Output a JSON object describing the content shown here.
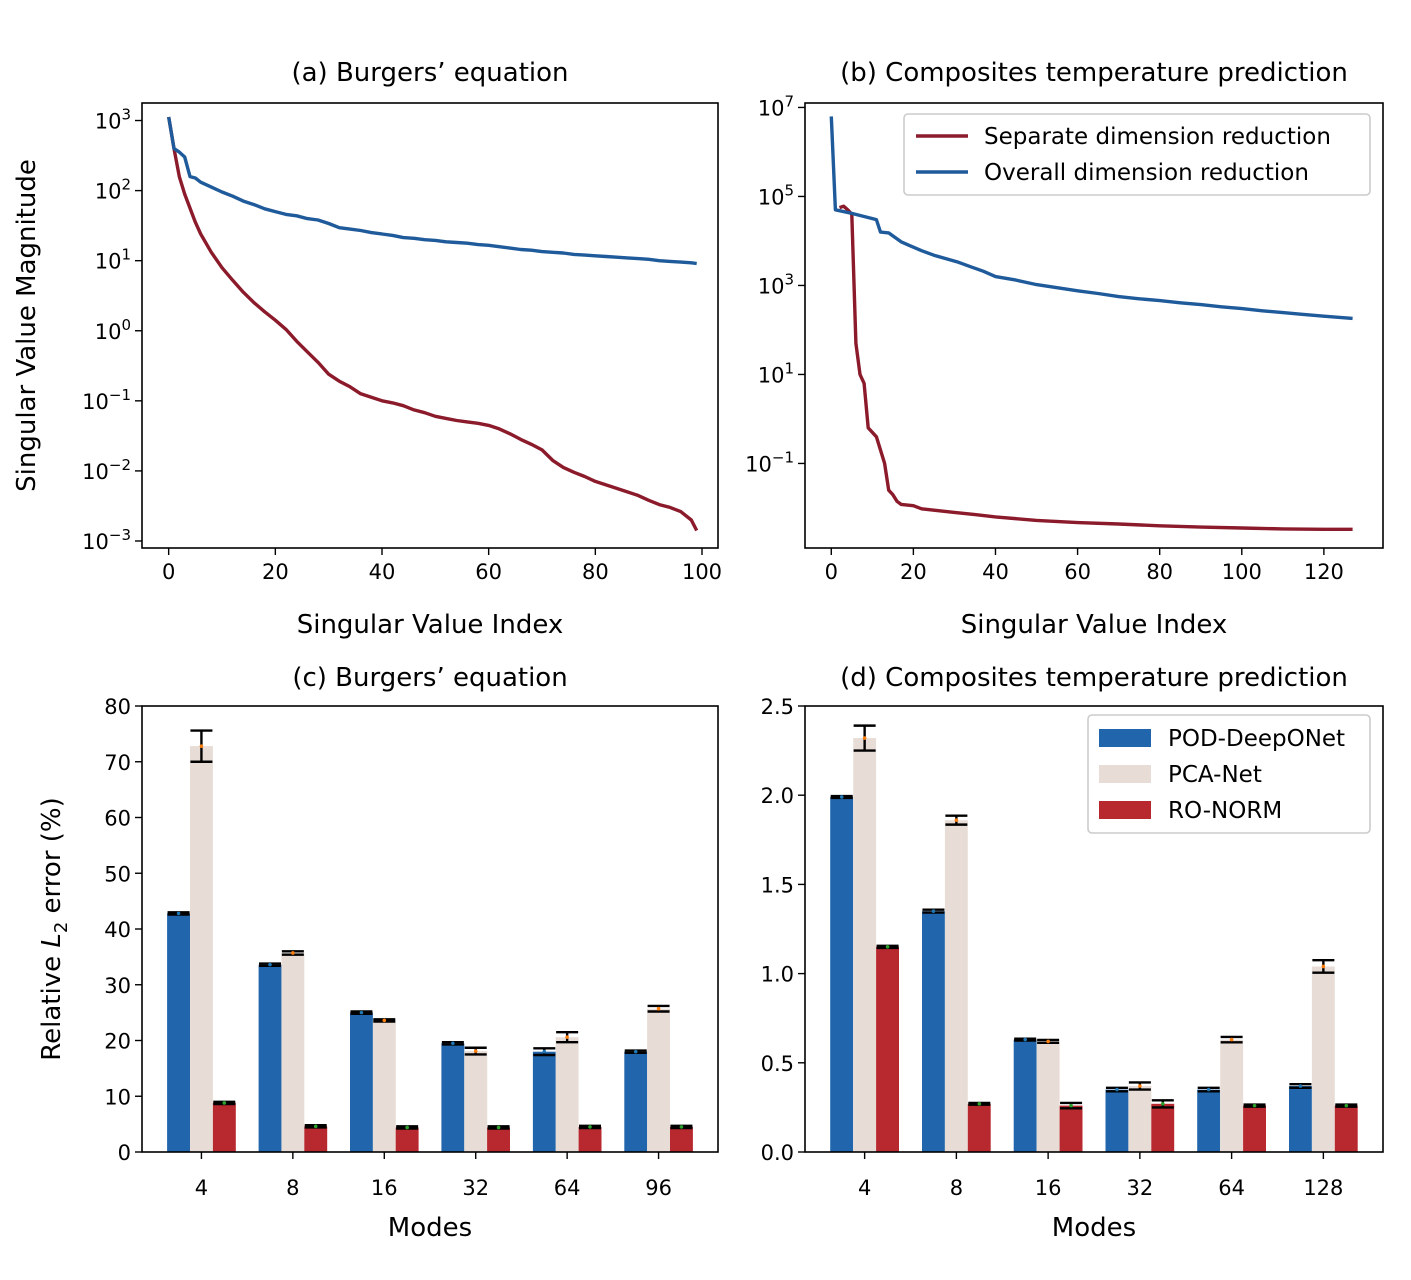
{
  "chart_data": [
    {
      "id": "a",
      "type": "line",
      "title": "(a) Burgers’ equation",
      "xlabel": "Singular Value Index",
      "ylabel": "Singular Value Magnitude",
      "yscale": "log",
      "xlim": [
        -5,
        103
      ],
      "ylim_log10": [
        -3.1,
        3.25
      ],
      "xticks": [
        0,
        20,
        40,
        60,
        80,
        100
      ],
      "yticks_exp": [
        -3,
        -2,
        -1,
        0,
        1,
        2,
        3
      ],
      "ytick_labels": [
        "10^-3",
        "10^-2",
        "10^-1",
        "10^0",
        "10^1",
        "10^2",
        "10^3"
      ],
      "series": [
        {
          "name": "Separate dimension reduction",
          "color": "#8b1a2b",
          "points_log10": [
            [
              0,
              3.05
            ],
            [
              1,
              2.6
            ],
            [
              2,
              2.2
            ],
            [
              3,
              1.95
            ],
            [
              4,
              1.75
            ],
            [
              5,
              1.55
            ],
            [
              6,
              1.38
            ],
            [
              8,
              1.12
            ],
            [
              10,
              0.9
            ],
            [
              12,
              0.72
            ],
            [
              14,
              0.55
            ],
            [
              16,
              0.4
            ],
            [
              18,
              0.27
            ],
            [
              20,
              0.15
            ],
            [
              22,
              0.02
            ],
            [
              24,
              -0.15
            ],
            [
              26,
              -0.3
            ],
            [
              28,
              -0.45
            ],
            [
              30,
              -0.62
            ],
            [
              32,
              -0.72
            ],
            [
              34,
              -0.8
            ],
            [
              36,
              -0.9
            ],
            [
              38,
              -0.95
            ],
            [
              40,
              -1.0
            ],
            [
              42,
              -1.03
            ],
            [
              44,
              -1.07
            ],
            [
              46,
              -1.13
            ],
            [
              48,
              -1.17
            ],
            [
              50,
              -1.22
            ],
            [
              52,
              -1.25
            ],
            [
              54,
              -1.28
            ],
            [
              56,
              -1.3
            ],
            [
              58,
              -1.32
            ],
            [
              60,
              -1.35
            ],
            [
              62,
              -1.4
            ],
            [
              64,
              -1.47
            ],
            [
              66,
              -1.55
            ],
            [
              68,
              -1.62
            ],
            [
              70,
              -1.7
            ],
            [
              72,
              -1.85
            ],
            [
              74,
              -1.95
            ],
            [
              76,
              -2.02
            ],
            [
              78,
              -2.08
            ],
            [
              80,
              -2.15
            ],
            [
              82,
              -2.2
            ],
            [
              84,
              -2.25
            ],
            [
              86,
              -2.3
            ],
            [
              88,
              -2.35
            ],
            [
              90,
              -2.42
            ],
            [
              92,
              -2.48
            ],
            [
              94,
              -2.52
            ],
            [
              96,
              -2.58
            ],
            [
              98,
              -2.7
            ],
            [
              99,
              -2.85
            ]
          ]
        },
        {
          "name": "Overall dimension reduction",
          "color": "#1f5a9b",
          "points_log10": [
            [
              0,
              3.05
            ],
            [
              1,
              2.6
            ],
            [
              2,
              2.55
            ],
            [
              3,
              2.48
            ],
            [
              4,
              2.2
            ],
            [
              5,
              2.18
            ],
            [
              6,
              2.12
            ],
            [
              8,
              2.05
            ],
            [
              10,
              1.98
            ],
            [
              12,
              1.92
            ],
            [
              14,
              1.85
            ],
            [
              16,
              1.8
            ],
            [
              18,
              1.74
            ],
            [
              20,
              1.7
            ],
            [
              22,
              1.66
            ],
            [
              24,
              1.64
            ],
            [
              26,
              1.6
            ],
            [
              28,
              1.58
            ],
            [
              30,
              1.53
            ],
            [
              32,
              1.47
            ],
            [
              34,
              1.45
            ],
            [
              36,
              1.43
            ],
            [
              38,
              1.4
            ],
            [
              40,
              1.38
            ],
            [
              42,
              1.36
            ],
            [
              44,
              1.33
            ],
            [
              46,
              1.32
            ],
            [
              48,
              1.3
            ],
            [
              50,
              1.29
            ],
            [
              52,
              1.27
            ],
            [
              54,
              1.26
            ],
            [
              56,
              1.25
            ],
            [
              58,
              1.23
            ],
            [
              60,
              1.22
            ],
            [
              62,
              1.2
            ],
            [
              64,
              1.18
            ],
            [
              66,
              1.16
            ],
            [
              68,
              1.15
            ],
            [
              70,
              1.13
            ],
            [
              72,
              1.12
            ],
            [
              74,
              1.11
            ],
            [
              76,
              1.09
            ],
            [
              78,
              1.08
            ],
            [
              80,
              1.07
            ],
            [
              82,
              1.06
            ],
            [
              84,
              1.05
            ],
            [
              86,
              1.04
            ],
            [
              88,
              1.03
            ],
            [
              90,
              1.02
            ],
            [
              92,
              1.0
            ],
            [
              94,
              0.99
            ],
            [
              96,
              0.98
            ],
            [
              98,
              0.97
            ],
            [
              99,
              0.96
            ]
          ]
        }
      ]
    },
    {
      "id": "b",
      "type": "line",
      "title": "(b) Composites temperature prediction",
      "xlabel": "Singular Value Index",
      "ylabel": "",
      "yscale": "log",
      "xlim": [
        -6.4,
        134.4
      ],
      "ylim_log10": [
        -2.9,
        7.1
      ],
      "xticks": [
        0,
        20,
        40,
        60,
        80,
        100,
        120
      ],
      "yticks_exp": [
        -1,
        1,
        3,
        5,
        7
      ],
      "ytick_labels": [
        "10^-1",
        "10^1",
        "10^3",
        "10^5",
        "10^7"
      ],
      "legend": {
        "position": "upper right",
        "entries": [
          "Separate dimension reduction",
          "Overall dimension reduction"
        ]
      },
      "series": [
        {
          "name": "Separate dimension reduction",
          "color": "#8b1a2b",
          "points_log10": [
            [
              2,
              4.75
            ],
            [
              3,
              4.78
            ],
            [
              4,
              4.7
            ],
            [
              5,
              4.6
            ],
            [
              6,
              1.7
            ],
            [
              7,
              1.0
            ],
            [
              8,
              0.8
            ],
            [
              9,
              -0.2
            ],
            [
              10,
              -0.3
            ],
            [
              11,
              -0.4
            ],
            [
              13,
              -1.0
            ],
            [
              14,
              -1.6
            ],
            [
              15,
              -1.7
            ],
            [
              16,
              -1.85
            ],
            [
              17,
              -1.92
            ],
            [
              20,
              -1.95
            ],
            [
              22,
              -2.02
            ],
            [
              25,
              -2.05
            ],
            [
              30,
              -2.1
            ],
            [
              35,
              -2.15
            ],
            [
              40,
              -2.2
            ],
            [
              50,
              -2.28
            ],
            [
              60,
              -2.33
            ],
            [
              70,
              -2.36
            ],
            [
              80,
              -2.4
            ],
            [
              90,
              -2.43
            ],
            [
              100,
              -2.45
            ],
            [
              110,
              -2.47
            ],
            [
              120,
              -2.48
            ],
            [
              127,
              -2.48
            ]
          ]
        },
        {
          "name": "Overall dimension reduction",
          "color": "#1f5a9b",
          "points_log10": [
            [
              0,
              6.8
            ],
            [
              1,
              4.7
            ],
            [
              2,
              4.68
            ],
            [
              5,
              4.62
            ],
            [
              8,
              4.55
            ],
            [
              11,
              4.48
            ],
            [
              12,
              4.2
            ],
            [
              14,
              4.18
            ],
            [
              17,
              3.98
            ],
            [
              19,
              3.9
            ],
            [
              22,
              3.78
            ],
            [
              25,
              3.68
            ],
            [
              28,
              3.6
            ],
            [
              31,
              3.52
            ],
            [
              34,
              3.42
            ],
            [
              37,
              3.32
            ],
            [
              40,
              3.2
            ],
            [
              45,
              3.12
            ],
            [
              50,
              3.02
            ],
            [
              55,
              2.95
            ],
            [
              60,
              2.88
            ],
            [
              65,
              2.82
            ],
            [
              70,
              2.75
            ],
            [
              75,
              2.7
            ],
            [
              80,
              2.66
            ],
            [
              85,
              2.61
            ],
            [
              90,
              2.57
            ],
            [
              95,
              2.52
            ],
            [
              100,
              2.48
            ],
            [
              105,
              2.43
            ],
            [
              110,
              2.39
            ],
            [
              115,
              2.35
            ],
            [
              120,
              2.31
            ],
            [
              127,
              2.26
            ]
          ]
        }
      ]
    },
    {
      "id": "c",
      "type": "bar",
      "title": "(c) Burgers’ equation",
      "xlabel": "Modes",
      "ylabel_prefix": "Relative ",
      "ylabel_var": "L",
      "ylabel_sub": "2",
      "ylabel_suffix": " error (%)",
      "ylim": [
        0,
        80
      ],
      "yticks": [
        0,
        10,
        20,
        30,
        40,
        50,
        60,
        70,
        80
      ],
      "categories": [
        "4",
        "8",
        "16",
        "32",
        "64",
        "96"
      ],
      "series": [
        {
          "name": "POD-DeepONet",
          "color": "#2166ac",
          "values": [
            42.8,
            33.6,
            25.0,
            19.5,
            18.0,
            18.0
          ],
          "errors": [
            0.2,
            0.2,
            0.2,
            0.2,
            0.6,
            0.2
          ]
        },
        {
          "name": "PCA-Net",
          "color": "#e8ddd6",
          "values": [
            72.8,
            35.7,
            23.6,
            18.1,
            20.6,
            25.7
          ],
          "errors": [
            2.8,
            0.3,
            0.2,
            0.6,
            0.9,
            0.5
          ]
        },
        {
          "name": "RO-NORM",
          "color": "#b8282f",
          "values": [
            8.8,
            4.6,
            4.4,
            4.4,
            4.5,
            4.5
          ],
          "errors": [
            0.2,
            0.2,
            0.2,
            0.2,
            0.2,
            0.2
          ]
        }
      ]
    },
    {
      "id": "d",
      "type": "bar",
      "title": "(d) Composites temperature prediction",
      "xlabel": "Modes",
      "ylabel": "",
      "ylim": [
        0,
        2.5
      ],
      "yticks": [
        0.0,
        0.5,
        1.0,
        1.5,
        2.0,
        2.5
      ],
      "ytick_labels": [
        "0.0",
        "0.5",
        "1.0",
        "1.5",
        "2.0",
        "2.5"
      ],
      "categories": [
        "4",
        "8",
        "16",
        "32",
        "64",
        "128"
      ],
      "legend": {
        "position": "upper right",
        "entries": [
          "POD-DeepONet",
          "PCA-Net",
          "RO-NORM"
        ]
      },
      "series": [
        {
          "name": "POD-DeepONet",
          "color": "#2166ac",
          "values": [
            1.99,
            1.35,
            0.63,
            0.35,
            0.35,
            0.37
          ],
          "errors": [
            0.005,
            0.008,
            0.005,
            0.01,
            0.01,
            0.01
          ]
        },
        {
          "name": "PCA-Net",
          "color": "#e8ddd6",
          "values": [
            2.32,
            1.86,
            0.62,
            0.37,
            0.63,
            1.04
          ],
          "errors": [
            0.07,
            0.025,
            0.008,
            0.02,
            0.015,
            0.035
          ]
        },
        {
          "name": "RO-NORM",
          "color": "#b8282f",
          "values": [
            1.15,
            0.27,
            0.26,
            0.27,
            0.26,
            0.26
          ],
          "errors": [
            0.006,
            0.005,
            0.015,
            0.02,
            0.006,
            0.006
          ]
        }
      ]
    }
  ]
}
